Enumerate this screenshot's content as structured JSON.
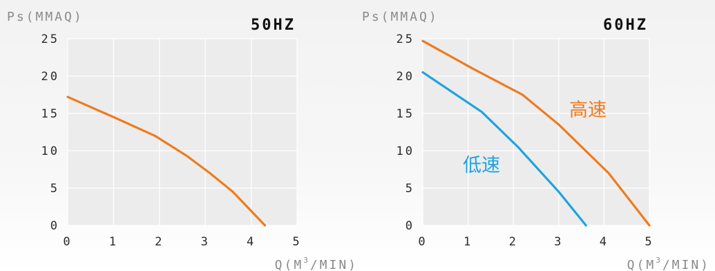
{
  "chart_data": [
    {
      "type": "line",
      "title": "50HZ",
      "ylabel": "Ps(MMAQ)",
      "xlabel_main": "Q(M",
      "xlabel_sup": "3",
      "xlabel_tail": "/MIN)",
      "xlim": [
        0,
        5
      ],
      "ylim": [
        0,
        25
      ],
      "xticks": [
        "0",
        "1",
        "2",
        "3",
        "4",
        "5"
      ],
      "yticks": [
        "0",
        "5",
        "10",
        "15",
        "20",
        "25"
      ],
      "grid": true,
      "series": [
        {
          "name": "",
          "color": "#ee7b1d",
          "points": [
            [
              0,
              17.2
            ],
            [
              1.0,
              14.5
            ],
            [
              1.9,
              12.0
            ],
            [
              2.6,
              9.3
            ],
            [
              3.1,
              7.0
            ],
            [
              3.6,
              4.5
            ],
            [
              4.3,
              0
            ]
          ]
        }
      ]
    },
    {
      "type": "line",
      "title": "60HZ",
      "ylabel": "Ps(MMAQ)",
      "xlabel_main": "Q(M",
      "xlabel_sup": "3",
      "xlabel_tail": "/MIN)",
      "xlim": [
        0,
        5
      ],
      "ylim": [
        0,
        25
      ],
      "xticks": [
        "0",
        "1",
        "2",
        "3",
        "4",
        "5"
      ],
      "yticks": [
        "0",
        "5",
        "10",
        "15",
        "20",
        "25"
      ],
      "grid": true,
      "series": [
        {
          "name": "高速",
          "color": "#ee7b1d",
          "points": [
            [
              0,
              24.7
            ],
            [
              1.1,
              21.0
            ],
            [
              2.2,
              17.5
            ],
            [
              3.0,
              13.5
            ],
            [
              4.1,
              7.0
            ],
            [
              5.0,
              0
            ]
          ]
        },
        {
          "name": "低速",
          "color": "#1fa3de",
          "points": [
            [
              0,
              20.5
            ],
            [
              1.3,
              15.2
            ],
            [
              2.1,
              10.5
            ],
            [
              3.0,
              4.5
            ],
            [
              3.6,
              0
            ]
          ]
        }
      ]
    }
  ]
}
